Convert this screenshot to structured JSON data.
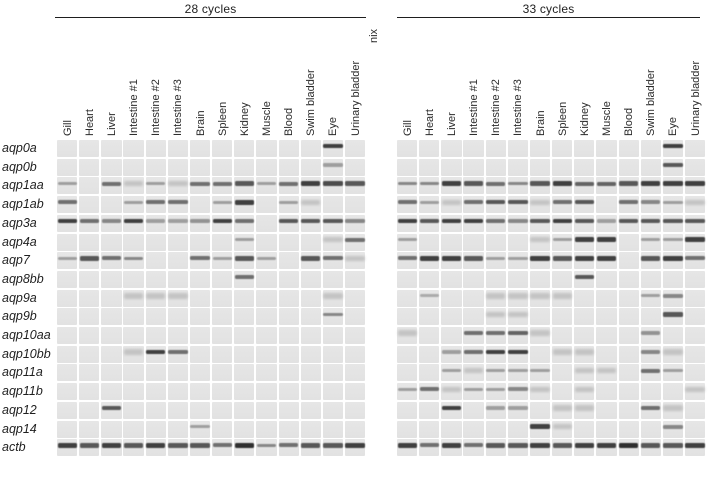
{
  "figure": {
    "description": "RT-PCR gel panel of aquaporin gene expression across tissues",
    "corner_label": "nix"
  },
  "panels": [
    {
      "header": "28 cycles"
    },
    {
      "header": "33 cycles"
    }
  ],
  "genes": [
    "aqp0a",
    "aqp0b",
    "aqp1aa",
    "aqp1ab",
    "aqp3a",
    "aqp4a",
    "aqp7",
    "aqp8bb",
    "aqp9a",
    "aqp9b",
    "aqp10aa",
    "aqp10bb",
    "aqp11a",
    "aqp11b",
    "aqp12",
    "aqp14",
    "actb"
  ],
  "tissues": [
    "Gill",
    "Heart",
    "Liver",
    "Intestine #1",
    "Intestine #2",
    "Intestine #3",
    "Brain",
    "Spleen",
    "Kidney",
    "Muscle",
    "Blood",
    "Swim bladder",
    "Eye",
    "Urinary bladder"
  ],
  "colors": {
    "lane_background": "#e4e4e4",
    "band": "#2f2f2f",
    "text": "#1f1f1f",
    "rule": "#1e1e1e"
  },
  "chart_data": {
    "type": "heatmap",
    "title": "",
    "rows": [
      "aqp0a",
      "aqp0b",
      "aqp1aa",
      "aqp1ab",
      "aqp3a",
      "aqp4a",
      "aqp7",
      "aqp8bb",
      "aqp9a",
      "aqp9b",
      "aqp10aa",
      "aqp10bb",
      "aqp11a",
      "aqp11b",
      "aqp12",
      "aqp14",
      "actb"
    ],
    "columns": [
      "Gill",
      "Heart",
      "Liver",
      "Intestine #1",
      "Intestine #2",
      "Intestine #3",
      "Brain",
      "Spleen",
      "Kidney",
      "Muscle",
      "Blood",
      "Swim bladder",
      "Eye",
      "Urinary bladder"
    ],
    "intensity_scale": "band intensity, 0 = none to 3.5 = strongest",
    "series": [
      {
        "name": "28 cycles",
        "matrix": [
          [
            0,
            0,
            0,
            0,
            0,
            0,
            0,
            0,
            0,
            0,
            0,
            0,
            3,
            0
          ],
          [
            0,
            0,
            0,
            0,
            0,
            0,
            0,
            0,
            0,
            0,
            0,
            0,
            1,
            0
          ],
          [
            1,
            0,
            2,
            0.5,
            1,
            0.5,
            2,
            2,
            2.5,
            1,
            2,
            3,
            2.75,
            2.5
          ],
          [
            2,
            0,
            0,
            1,
            2,
            2,
            0,
            1,
            3,
            0,
            1,
            0.5,
            0,
            0
          ],
          [
            3,
            2,
            1.5,
            3,
            1,
            1,
            1.25,
            3,
            2,
            0,
            2.5,
            2.5,
            2.5,
            1.5
          ],
          [
            0,
            0,
            0,
            0,
            0,
            0,
            0,
            0,
            1,
            0,
            0,
            0,
            0.5,
            2
          ],
          [
            1,
            2.5,
            2,
            1.5,
            0,
            0,
            2,
            1,
            2.5,
            1,
            0,
            2.5,
            2,
            0.5
          ],
          [
            0,
            0,
            0,
            0,
            0,
            0,
            0,
            0,
            2,
            0,
            0,
            0,
            0,
            0
          ],
          [
            0,
            0,
            0,
            0.5,
            0.5,
            0.5,
            0,
            0,
            0,
            0,
            0,
            0,
            0.5,
            0
          ],
          [
            0,
            0,
            0,
            0,
            0,
            0,
            0,
            0,
            0,
            0,
            0,
            0,
            1.5,
            0
          ],
          [
            0,
            0,
            0,
            0,
            0,
            0,
            0,
            0,
            0,
            0,
            0,
            0,
            0,
            0
          ],
          [
            0,
            0,
            0,
            0.5,
            3,
            2,
            0,
            0,
            0,
            0,
            0,
            0,
            0,
            0
          ],
          [
            0,
            0,
            0,
            0,
            0,
            0,
            0,
            0,
            0,
            0,
            0,
            0,
            0,
            0
          ],
          [
            0,
            0,
            0,
            0,
            0,
            0,
            0,
            0,
            0,
            0,
            0,
            0,
            0,
            0
          ],
          [
            0,
            0,
            2.5,
            0,
            0,
            0,
            0,
            0,
            0,
            0,
            0,
            0,
            0,
            0
          ],
          [
            0,
            0,
            0,
            0,
            0,
            0,
            1,
            0,
            0,
            0,
            0,
            0,
            0,
            0
          ],
          [
            3,
            2.5,
            3,
            2.5,
            3,
            2.5,
            2.5,
            2,
            3.5,
            1.5,
            2,
            2.5,
            2.5,
            3
          ]
        ]
      },
      {
        "name": "33 cycles",
        "matrix": [
          [
            0,
            0,
            0,
            0,
            0,
            0,
            0,
            0,
            0,
            0,
            0,
            0,
            3,
            0
          ],
          [
            0,
            0,
            0,
            0,
            0,
            0,
            0,
            0,
            0,
            0,
            0,
            0,
            2.5,
            0
          ],
          [
            1.5,
            1.5,
            3,
            2.5,
            2,
            1.5,
            2.5,
            3,
            2.25,
            2.25,
            2.5,
            3,
            3,
            3
          ],
          [
            2,
            1,
            0.5,
            2,
            2.5,
            2.5,
            0.5,
            2,
            2.5,
            0,
            2,
            1.5,
            1,
            0.5
          ],
          [
            3,
            2.5,
            3,
            3,
            2,
            1.5,
            2.5,
            3,
            2.5,
            1,
            2.5,
            2.5,
            2.5,
            2.5
          ],
          [
            1,
            0,
            0,
            0,
            0,
            0,
            0.5,
            1,
            3,
            3,
            0,
            1,
            1,
            3
          ],
          [
            2,
            3,
            3,
            2.5,
            1,
            1,
            3,
            2.5,
            3,
            3,
            0,
            2.5,
            3,
            2
          ],
          [
            0,
            0,
            0,
            0,
            0,
            0,
            0,
            0,
            2.5,
            0,
            0,
            0,
            0,
            0
          ],
          [
            0,
            0.75,
            0,
            0,
            0.5,
            0.5,
            0.5,
            0.5,
            0,
            0,
            0,
            1,
            1.5,
            0
          ],
          [
            0,
            0,
            0,
            0,
            0.5,
            0.5,
            0,
            0,
            0,
            0,
            0,
            0,
            2.5,
            0
          ],
          [
            0.5,
            0,
            0,
            2,
            2,
            2.25,
            0.5,
            0,
            0,
            0,
            0,
            1.25,
            0,
            0
          ],
          [
            0,
            0,
            1,
            2,
            3,
            3,
            0,
            0.5,
            0.5,
            0,
            0,
            1.5,
            0.5,
            0
          ],
          [
            0,
            0,
            1,
            0.5,
            1,
            1,
            1,
            0,
            0.5,
            0.5,
            0,
            2,
            1,
            0
          ],
          [
            1,
            2,
            0.5,
            1,
            1,
            1.5,
            0.5,
            0,
            0.5,
            0,
            0,
            0,
            0,
            0.5
          ],
          [
            0,
            0,
            3,
            0,
            1,
            1,
            0,
            0.5,
            0.5,
            0,
            0,
            2,
            0.5,
            0
          ],
          [
            0,
            0,
            0,
            0,
            0,
            0,
            3,
            0.5,
            0,
            0,
            0,
            0,
            1.5,
            0
          ],
          [
            3,
            2,
            3,
            2,
            2.5,
            2.5,
            3,
            2.5,
            3,
            3,
            3.5,
            2.5,
            2.5,
            3
          ]
        ]
      }
    ]
  }
}
